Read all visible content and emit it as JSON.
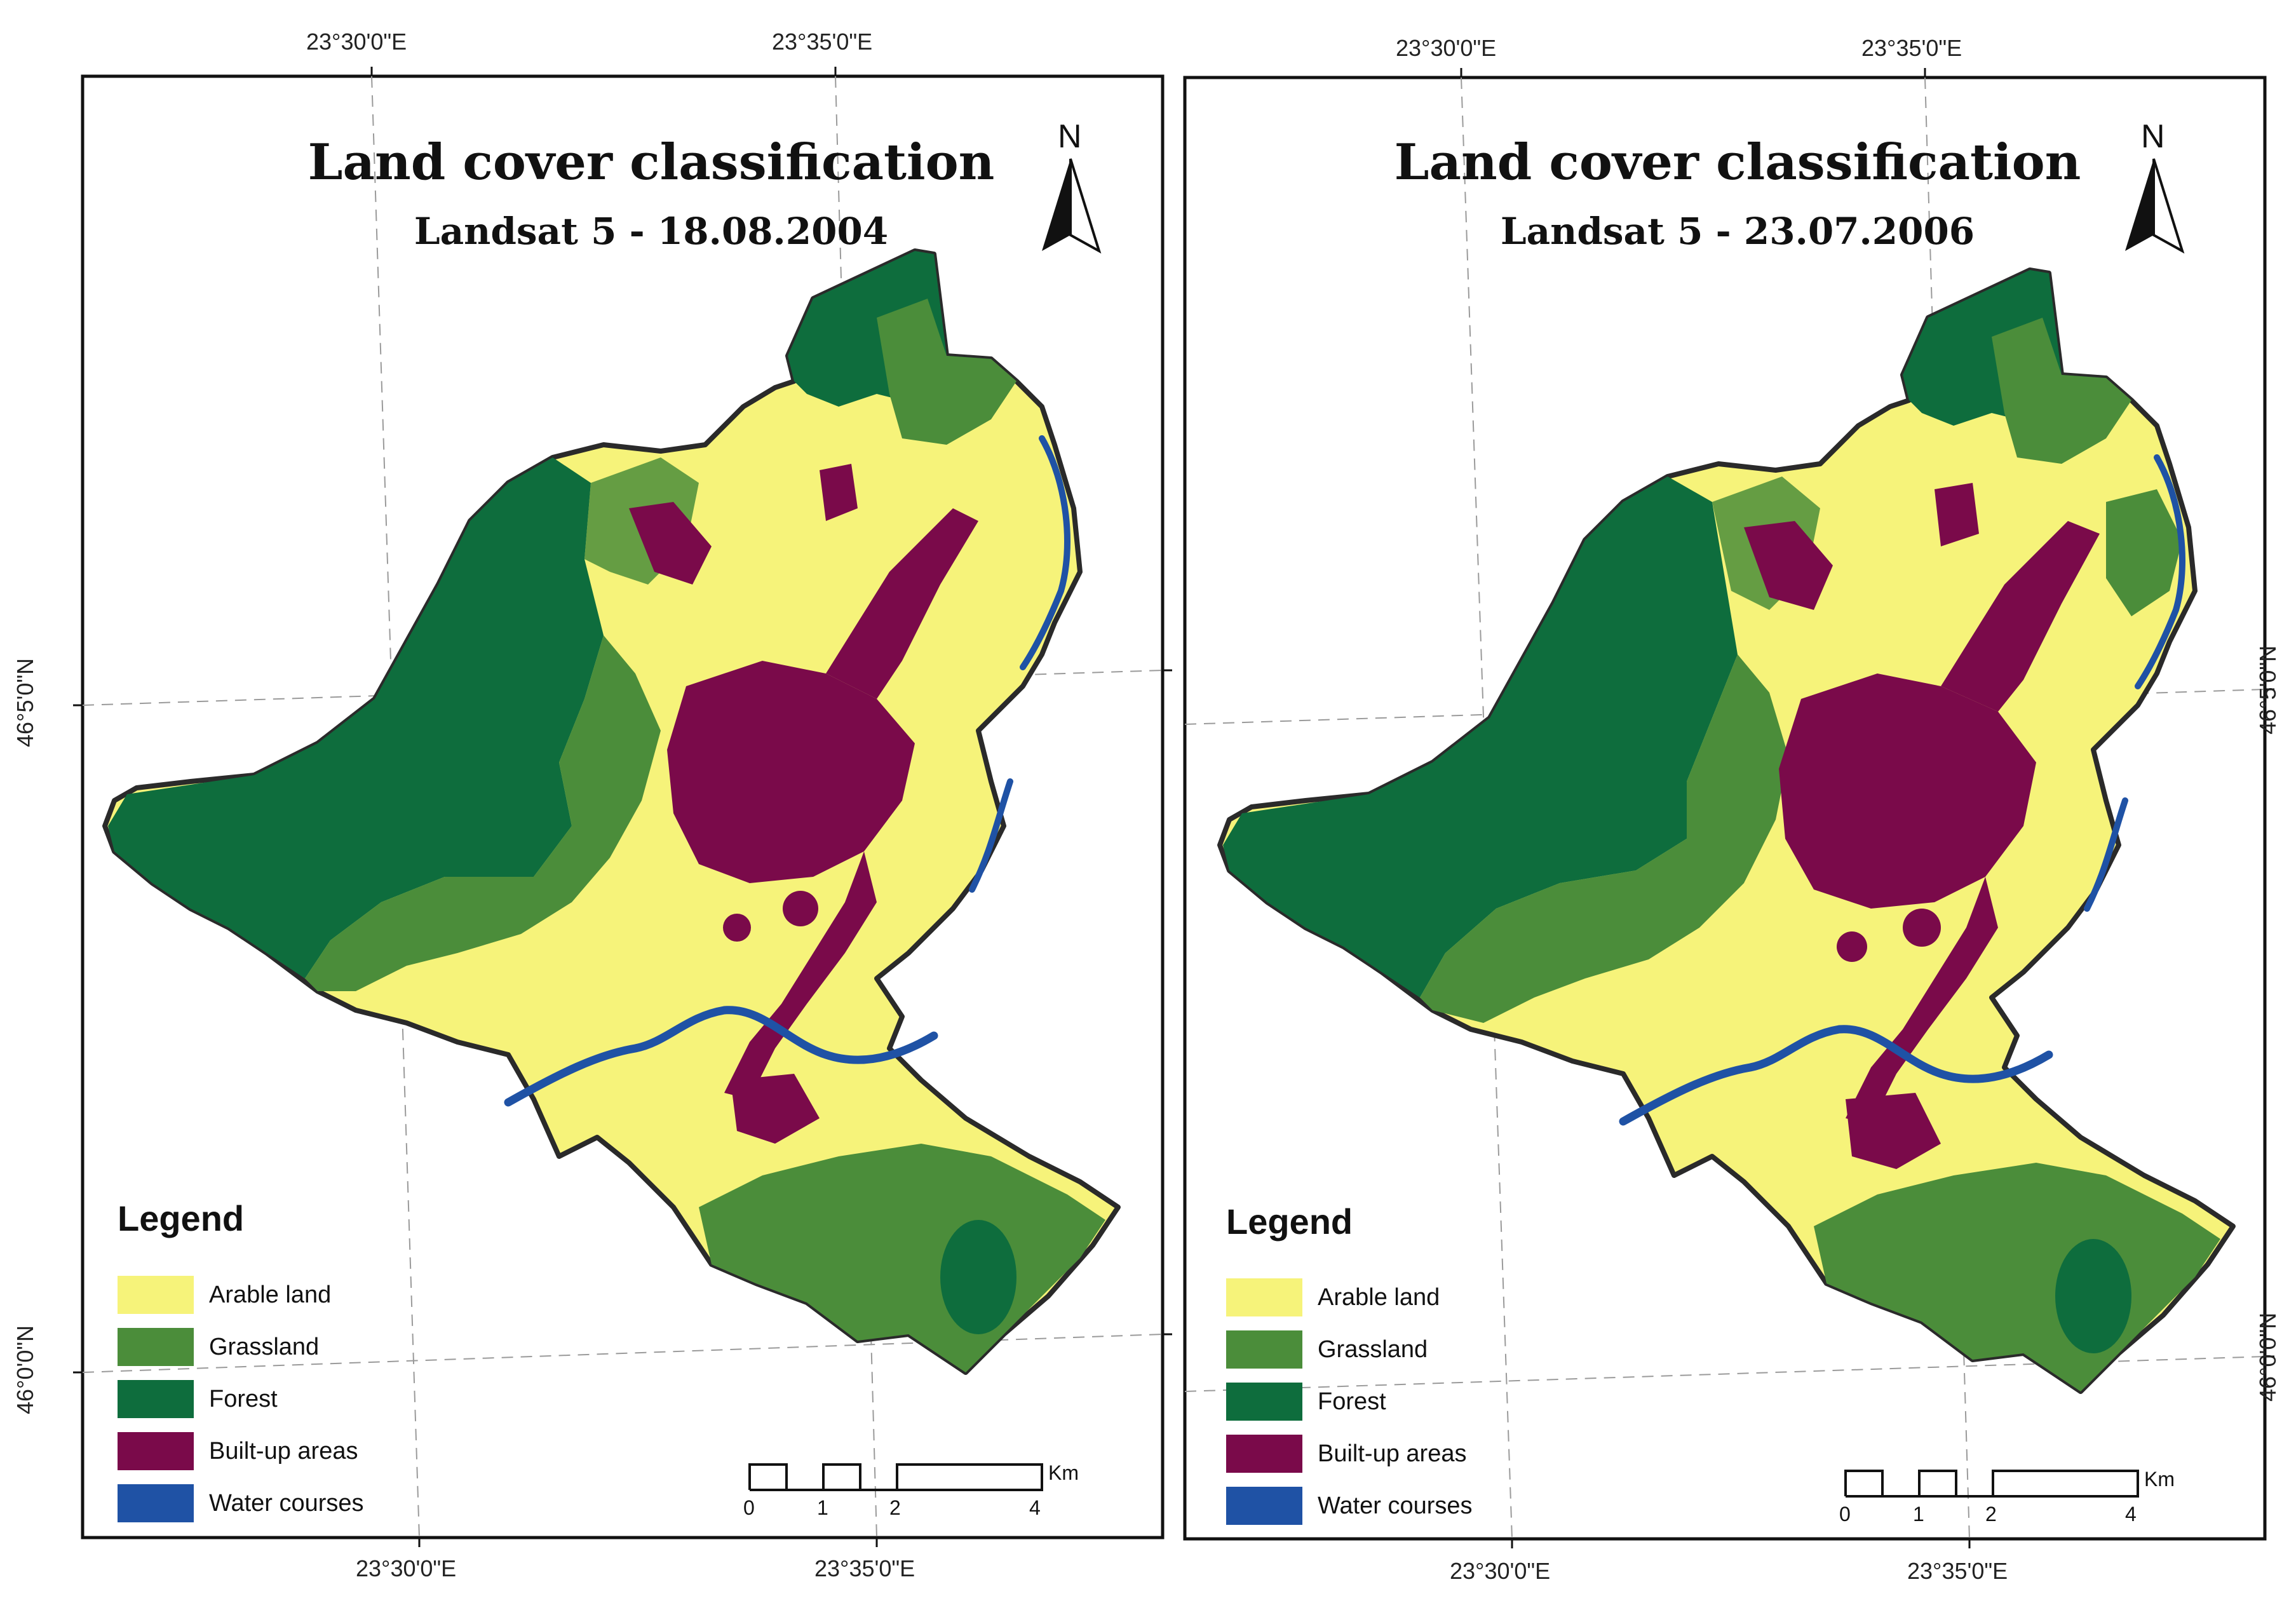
{
  "colors": {
    "arable": "#f6f37a",
    "grassland": "#4b8d3a",
    "forest": "#0e6d3d",
    "builtup": "#7a0a4a",
    "water": "#1f52a5",
    "outline": "#2a2a2a"
  },
  "panels": [
    {
      "title": "Land cover classification",
      "subtitle": "Landsat 5 - 18.08.2004",
      "coords": {
        "top_left": "23°30'0\"E",
        "top_right": "23°35'0\"E",
        "bottom_left": "23°30'0\"E",
        "bottom_right": "23°35'0\"E",
        "side_upper": "46°5'0\"N",
        "side_lower": "46°0'0\"N"
      },
      "north": "N",
      "legend": {
        "title": "Legend",
        "items": [
          {
            "label": "Arable land",
            "color": "#f6f37a"
          },
          {
            "label": "Grassland",
            "color": "#4b8d3a"
          },
          {
            "label": "Forest",
            "color": "#0e6d3d"
          },
          {
            "label": "Built-up areas",
            "color": "#7a0a4a"
          },
          {
            "label": "Water courses",
            "color": "#1f52a5"
          }
        ]
      },
      "scale": {
        "labels": [
          "0",
          "1",
          "2",
          "4"
        ],
        "unit": "Km"
      }
    },
    {
      "title": "Land cover classification",
      "subtitle": "Landsat 5 - 23.07.2006",
      "coords": {
        "top_left": "23°30'0\"E",
        "top_right": "23°35'0\"E",
        "bottom_left": "23°30'0\"E",
        "bottom_right": "23°35'0\"E",
        "side_upper": "46°5'0\"N",
        "side_lower": "46°0'0\"N"
      },
      "north": "N",
      "legend": {
        "title": "Legend",
        "items": [
          {
            "label": "Arable land",
            "color": "#f6f37a"
          },
          {
            "label": "Grassland",
            "color": "#4b8d3a"
          },
          {
            "label": "Forest",
            "color": "#0e6d3d"
          },
          {
            "label": "Built-up areas",
            "color": "#7a0a4a"
          },
          {
            "label": "Water courses",
            "color": "#1f52a5"
          }
        ]
      },
      "scale": {
        "labels": [
          "0",
          "1",
          "2",
          "4"
        ],
        "unit": "Km"
      }
    }
  ]
}
